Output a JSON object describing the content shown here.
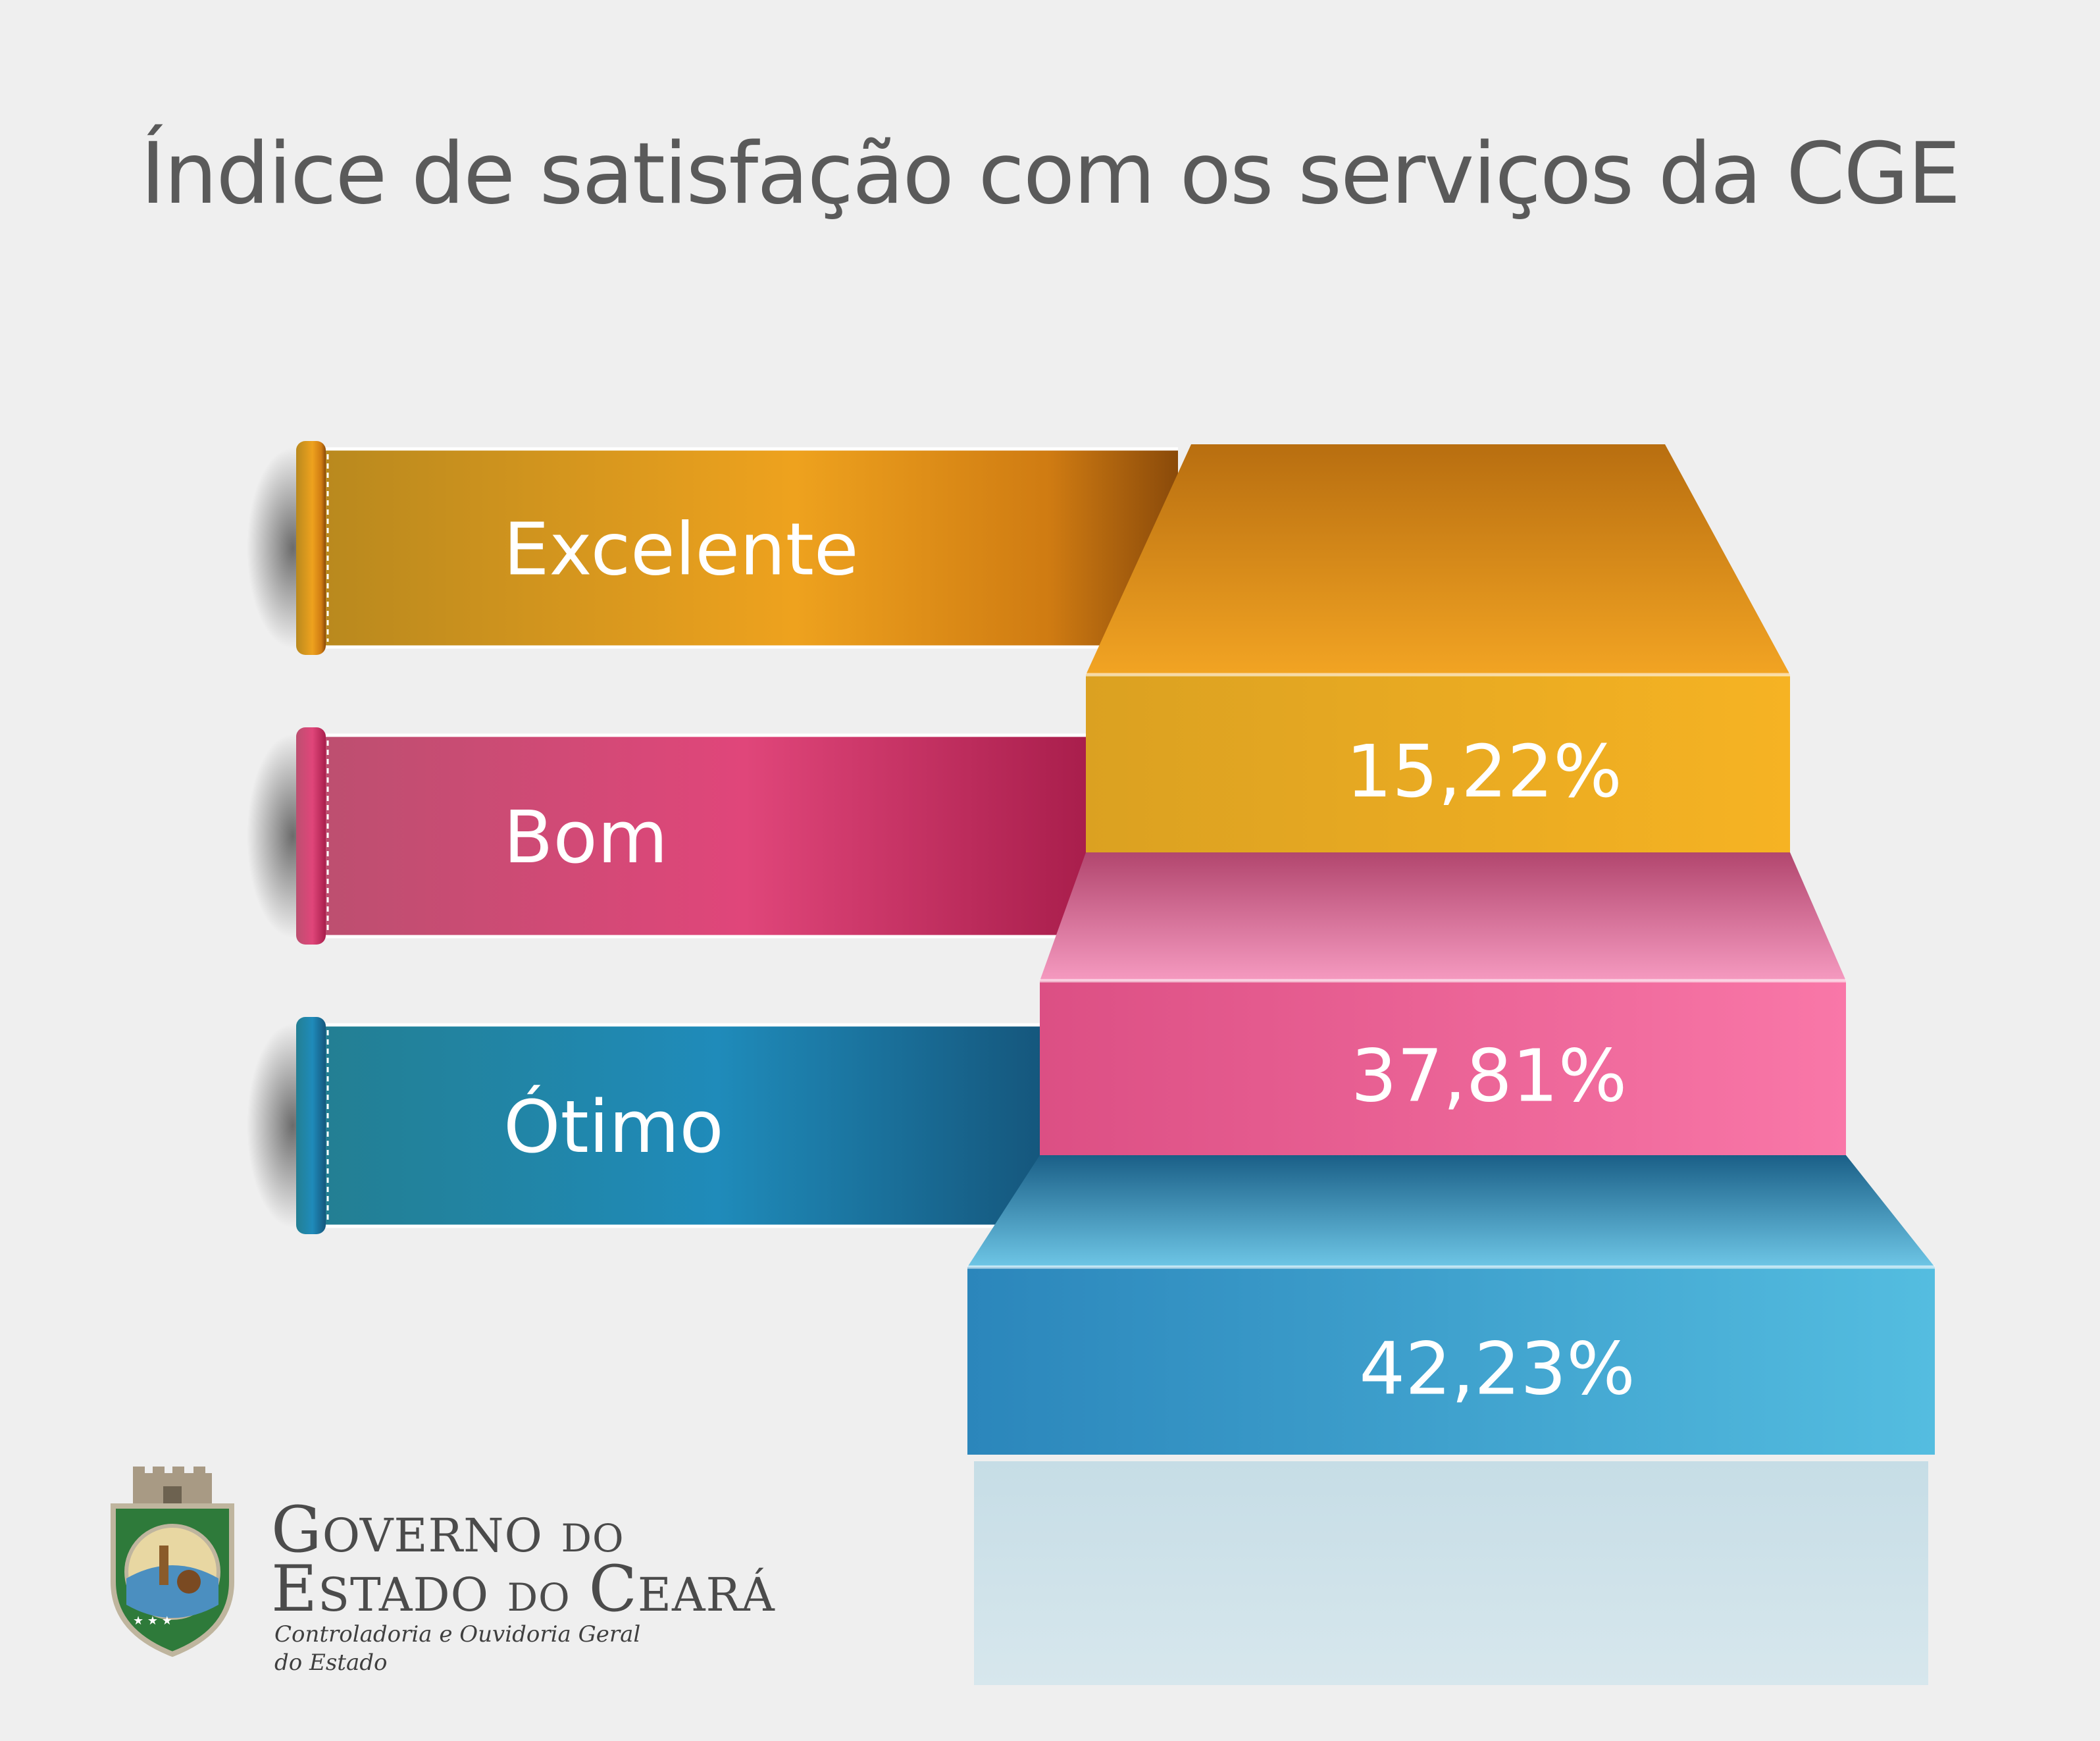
{
  "title": "Índice de satisfação com os serviços da CGE",
  "chart_data": {
    "type": "bar",
    "categories": [
      "Excelente",
      "Bom",
      "Ótimo"
    ],
    "values": [
      15.22,
      37.81,
      42.23
    ],
    "value_labels": [
      "15,22%",
      "37,81%",
      "42,23%"
    ],
    "unit": "%"
  },
  "colors": {
    "excelente": "#e8a020",
    "bom": "#e0507f",
    "otimo": "#2288b8"
  },
  "brand": {
    "line1_cap": "G",
    "line1_rest": "OVERNO",
    "line1_small": "DO",
    "line2_cap": "E",
    "line2_rest": "STADO",
    "line2_small": "DO",
    "line2_cap2": "C",
    "line2_rest2": "EARÁ",
    "sub_line1": "Controladoria e Ouvidoria Geral",
    "sub_line2": "do Estado",
    "seal_icon": "state-coat-of-arms-icon"
  }
}
